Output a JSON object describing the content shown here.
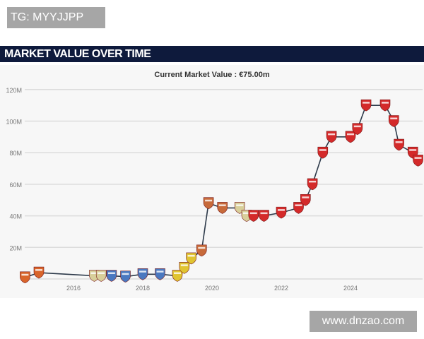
{
  "watermarks": {
    "top_left": "TG: MYYJJPP",
    "bottom_right": "www.dnzao.com"
  },
  "header": {
    "title": "MARKET VALUE OVER TIME"
  },
  "chart_data": {
    "type": "line",
    "title": "Current Market Value : €75.00m",
    "xlabel": "",
    "ylabel": "",
    "xlim": [
      2014.4,
      2026.1
    ],
    "ylim": [
      0,
      120
    ],
    "yticks": [
      {
        "v": 20,
        "label": "20M"
      },
      {
        "v": 40,
        "label": "40M"
      },
      {
        "v": 60,
        "label": "60M"
      },
      {
        "v": 80,
        "label": "80M"
      },
      {
        "v": 100,
        "label": "100M"
      },
      {
        "v": 120,
        "label": "120M"
      }
    ],
    "xticks": [
      {
        "v": 2016,
        "label": "2016"
      },
      {
        "v": 2018,
        "label": "2018"
      },
      {
        "v": 2020,
        "label": "2020"
      },
      {
        "v": 2022,
        "label": "2022"
      },
      {
        "v": 2024,
        "label": "2024"
      }
    ],
    "grid": true,
    "points": [
      {
        "x": 2014.6,
        "y": 1,
        "club_color": "#d9652b"
      },
      {
        "x": 2015.0,
        "y": 4,
        "club_color": "#d9652b"
      },
      {
        "x": 2016.6,
        "y": 2,
        "club_color": "#d8cf9a"
      },
      {
        "x": 2016.8,
        "y": 2,
        "club_color": "#d8cf9a"
      },
      {
        "x": 2017.1,
        "y": 2,
        "club_color": "#4a78c0"
      },
      {
        "x": 2017.5,
        "y": 1.5,
        "club_color": "#4a78c0"
      },
      {
        "x": 2018.0,
        "y": 3,
        "club_color": "#4a78c0"
      },
      {
        "x": 2018.5,
        "y": 3,
        "club_color": "#4a78c0"
      },
      {
        "x": 2019.0,
        "y": 2,
        "club_color": "#e0c431"
      },
      {
        "x": 2019.2,
        "y": 7,
        "club_color": "#e0c431"
      },
      {
        "x": 2019.4,
        "y": 13,
        "club_color": "#e0c431"
      },
      {
        "x": 2019.7,
        "y": 18,
        "club_color": "#c76a3a"
      },
      {
        "x": 2019.9,
        "y": 48,
        "club_color": "#c76a3a"
      },
      {
        "x": 2020.3,
        "y": 45,
        "club_color": "#c76a3a"
      },
      {
        "x": 2020.8,
        "y": 45,
        "club_color": "#d8cf9a"
      },
      {
        "x": 2021.0,
        "y": 40,
        "club_color": "#d8cf9a"
      },
      {
        "x": 2021.2,
        "y": 40,
        "club_color": "#d42a2a"
      },
      {
        "x": 2021.5,
        "y": 40,
        "club_color": "#d42a2a"
      },
      {
        "x": 2022.0,
        "y": 42,
        "club_color": "#d42a2a"
      },
      {
        "x": 2022.5,
        "y": 45,
        "club_color": "#d42a2a"
      },
      {
        "x": 2022.7,
        "y": 50,
        "club_color": "#d42a2a"
      },
      {
        "x": 2022.9,
        "y": 60,
        "club_color": "#d42a2a"
      },
      {
        "x": 2023.2,
        "y": 80,
        "club_color": "#d42a2a"
      },
      {
        "x": 2023.45,
        "y": 90,
        "club_color": "#d42a2a"
      },
      {
        "x": 2024.0,
        "y": 90,
        "club_color": "#d42a2a"
      },
      {
        "x": 2024.2,
        "y": 95,
        "club_color": "#d42a2a"
      },
      {
        "x": 2024.45,
        "y": 110,
        "club_color": "#d42a2a"
      },
      {
        "x": 2025.0,
        "y": 110,
        "club_color": "#d42a2a"
      },
      {
        "x": 2025.25,
        "y": 100,
        "club_color": "#d42a2a"
      },
      {
        "x": 2025.4,
        "y": 85,
        "club_color": "#d42a2a"
      },
      {
        "x": 2025.8,
        "y": 80,
        "club_color": "#d42a2a"
      },
      {
        "x": 2025.95,
        "y": 75,
        "club_color": "#d42a2a"
      }
    ]
  }
}
